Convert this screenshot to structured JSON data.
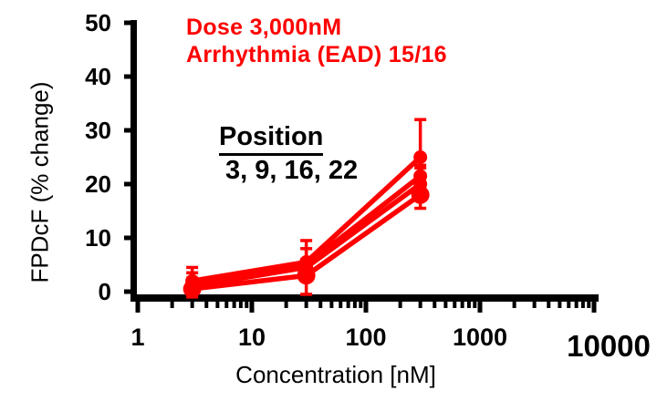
{
  "chart_data": {
    "type": "line",
    "title": "",
    "xlabel": "Concentration [nM]",
    "ylabel": "FPDcF (% change)",
    "xscale": "log",
    "xlim": [
      1,
      10000
    ],
    "ylim": [
      0,
      50
    ],
    "xticks": [
      1,
      10,
      100,
      1000,
      10000
    ],
    "yticks": [
      0,
      10,
      20,
      30,
      40,
      50
    ],
    "grid": false,
    "legend": "none",
    "line_color": "#ff0000",
    "axis_color": "#000000",
    "x": [
      3,
      30,
      300
    ],
    "series": [
      {
        "name": "Position 3",
        "values": [
          2.0,
          5.5,
          25.0
        ],
        "err_up": [
          2.5,
          4.0,
          7.0
        ],
        "err_down": [
          1.0,
          1.5,
          2.0
        ],
        "marker_r": 7.5
      },
      {
        "name": "Position 9",
        "values": [
          1.5,
          5.0,
          21.5
        ],
        "err_up": [
          2.0,
          3.0,
          2.0
        ],
        "err_down": [
          1.0,
          1.5,
          2.0
        ],
        "marker_r": 7.5
      },
      {
        "name": "Position 16",
        "values": [
          1.0,
          4.5,
          20.0
        ],
        "err_up": [
          1.5,
          1.5,
          1.5
        ],
        "err_down": [
          1.0,
          1.5,
          1.5
        ],
        "marker_r": 7.5
      },
      {
        "name": "Position 22",
        "values": [
          0.5,
          3.0,
          18.0
        ],
        "err_up": [
          1.0,
          2.0,
          1.5
        ],
        "err_down": [
          1.5,
          3.5,
          2.5
        ],
        "marker_r": 10
      }
    ],
    "annotations": {
      "dose_line1": "Dose 3,000nM",
      "dose_line2": "Arrhythmia (EAD) 15/16",
      "position_header": "Position",
      "position_values": "3, 9, 16, 22"
    }
  }
}
